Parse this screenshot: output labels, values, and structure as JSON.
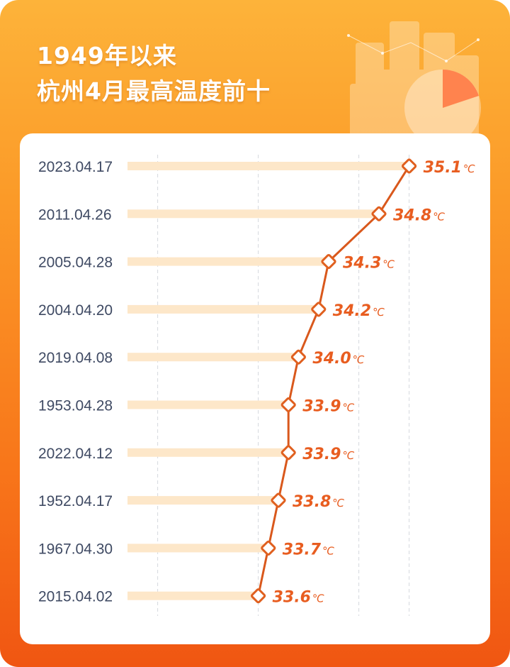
{
  "header": {
    "title_line1": "1949年以来",
    "title_line2": "杭州4月最高温度前十"
  },
  "colors": {
    "background_top": "#fdb33a",
    "background_bottom": "#f05612",
    "accent": "#e85d20",
    "bar": "#fde7c9",
    "label": "#3f4a63"
  },
  "chart_data": {
    "type": "line",
    "unit": "℃",
    "categories": [
      "2023.04.17",
      "2011.04.26",
      "2005.04.28",
      "2004.04.20",
      "2019.04.08",
      "1953.04.28",
      "2022.04.12",
      "1952.04.17",
      "1967.04.30",
      "2015.04.02"
    ],
    "values": [
      35.1,
      34.8,
      34.3,
      34.2,
      34.0,
      33.9,
      33.9,
      33.8,
      33.7,
      33.6
    ],
    "value_labels": [
      "35.1",
      "34.8",
      "34.3",
      "34.2",
      "34.0",
      "33.9",
      "33.9",
      "33.8",
      "33.7",
      "33.6"
    ],
    "xlim": [
      32.3,
      35.3
    ],
    "gridlines": [
      32.6,
      33.6,
      34.6,
      35.1
    ],
    "grid": true,
    "orientation": "horizontal"
  }
}
